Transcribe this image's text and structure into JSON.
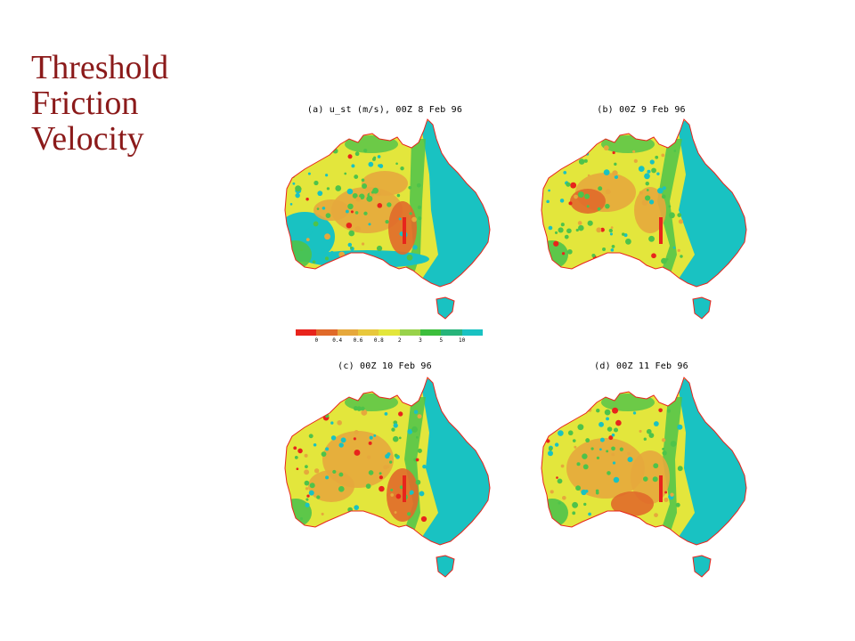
{
  "slide": {
    "title_lines": [
      "Threshold",
      "Friction",
      "Velocity"
    ]
  },
  "colors": {
    "title": "#8b1a1a",
    "land_low": "#e3e63c",
    "land_mid": "#e6a83c",
    "land_high": "#e06a2a",
    "green": "#4ec34a",
    "cyan": "#19c2c2",
    "red": "#e8241c",
    "outline": "#e8241c"
  },
  "legend": {
    "colors": [
      "#e8241c",
      "#e06a2a",
      "#e6a83c",
      "#e8c83c",
      "#e3e63c",
      "#98d24a",
      "#3cbe3c",
      "#27b47a",
      "#19c2c2"
    ],
    "labels": [
      "0",
      "0.4",
      "0.6",
      "0.8",
      "2",
      "3",
      "5",
      "10"
    ]
  },
  "panels": [
    {
      "id": "a",
      "caption": "(a) u_st (m/s), 00Z 8 Feb 96"
    },
    {
      "id": "b",
      "caption": "(b) 00Z 9 Feb 96"
    },
    {
      "id": "c",
      "caption": "(c) 00Z 10 Feb 96"
    },
    {
      "id": "d",
      "caption": "(d) 00Z 11 Feb 96"
    }
  ]
}
